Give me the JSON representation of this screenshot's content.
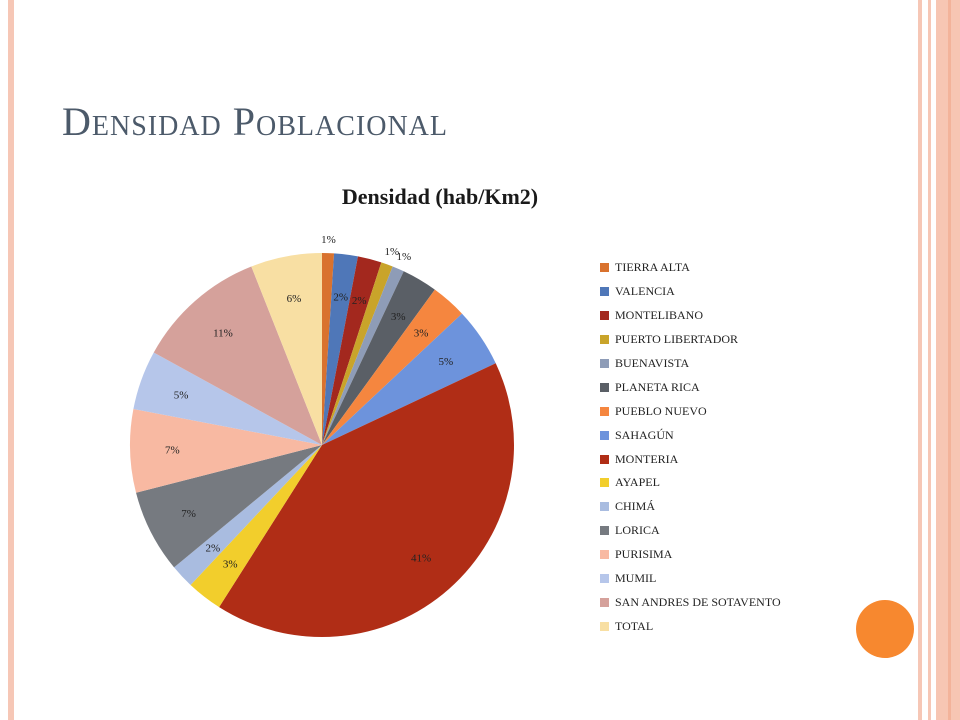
{
  "slide": {
    "title": "Densidad Poblacional"
  },
  "colors": {
    "frame": "#f6c7b6",
    "accent_circle": "#f7882f",
    "title_text": "#4c5a6a"
  },
  "chart_data": {
    "type": "pie",
    "title": "Densidad (hab/Km2)",
    "legend_position": "right",
    "slices": [
      {
        "label": "TIERRA ALTA",
        "value": 1,
        "pct_label": "1%",
        "color": "#d9722e"
      },
      {
        "label": "VALENCIA",
        "value": 2,
        "pct_label": "2%",
        "color": "#4f77b8"
      },
      {
        "label": "MONTELIBANO",
        "value": 2,
        "pct_label": "2%",
        "color": "#a3281e"
      },
      {
        "label": "PUERTO LIBERTADOR",
        "value": 1,
        "pct_label": "1%",
        "color": "#c9a42a"
      },
      {
        "label": "BUENAVISTA",
        "value": 1,
        "pct_label": "1%",
        "color": "#8e9cb7"
      },
      {
        "label": "PLANETA RICA",
        "value": 3,
        "pct_label": "3%",
        "color": "#5a5f66"
      },
      {
        "label": "PUEBLO NUEVO",
        "value": 3,
        "pct_label": "3%",
        "color": "#f5863f"
      },
      {
        "label": "SAHAGÚN",
        "value": 5,
        "pct_label": "5%",
        "color": "#6d93dc"
      },
      {
        "label": "MONTERIA",
        "value": 41,
        "pct_label": "41%",
        "color": "#b02d16"
      },
      {
        "label": "AYAPEL",
        "value": 3,
        "pct_label": "3%",
        "color": "#f2ce2c"
      },
      {
        "label": "CHIMÁ",
        "value": 2,
        "pct_label": "2%",
        "color": "#a9bce0"
      },
      {
        "label": "LORICA",
        "value": 7,
        "pct_label": "7%",
        "color": "#767a80"
      },
      {
        "label": "PURISIMA",
        "value": 7,
        "pct_label": "7%",
        "color": "#f8b9a2"
      },
      {
        "label": "MUMIL",
        "value": 5,
        "pct_label": "5%",
        "color": "#b6c6ea"
      },
      {
        "label": "SAN ANDRES DE SOTAVENTO",
        "value": 11,
        "pct_label": "11%",
        "color": "#d5a19b"
      },
      {
        "label": "TOTAL",
        "value": 6,
        "pct_label": "6%",
        "color": "#f8dfa3"
      }
    ]
  }
}
